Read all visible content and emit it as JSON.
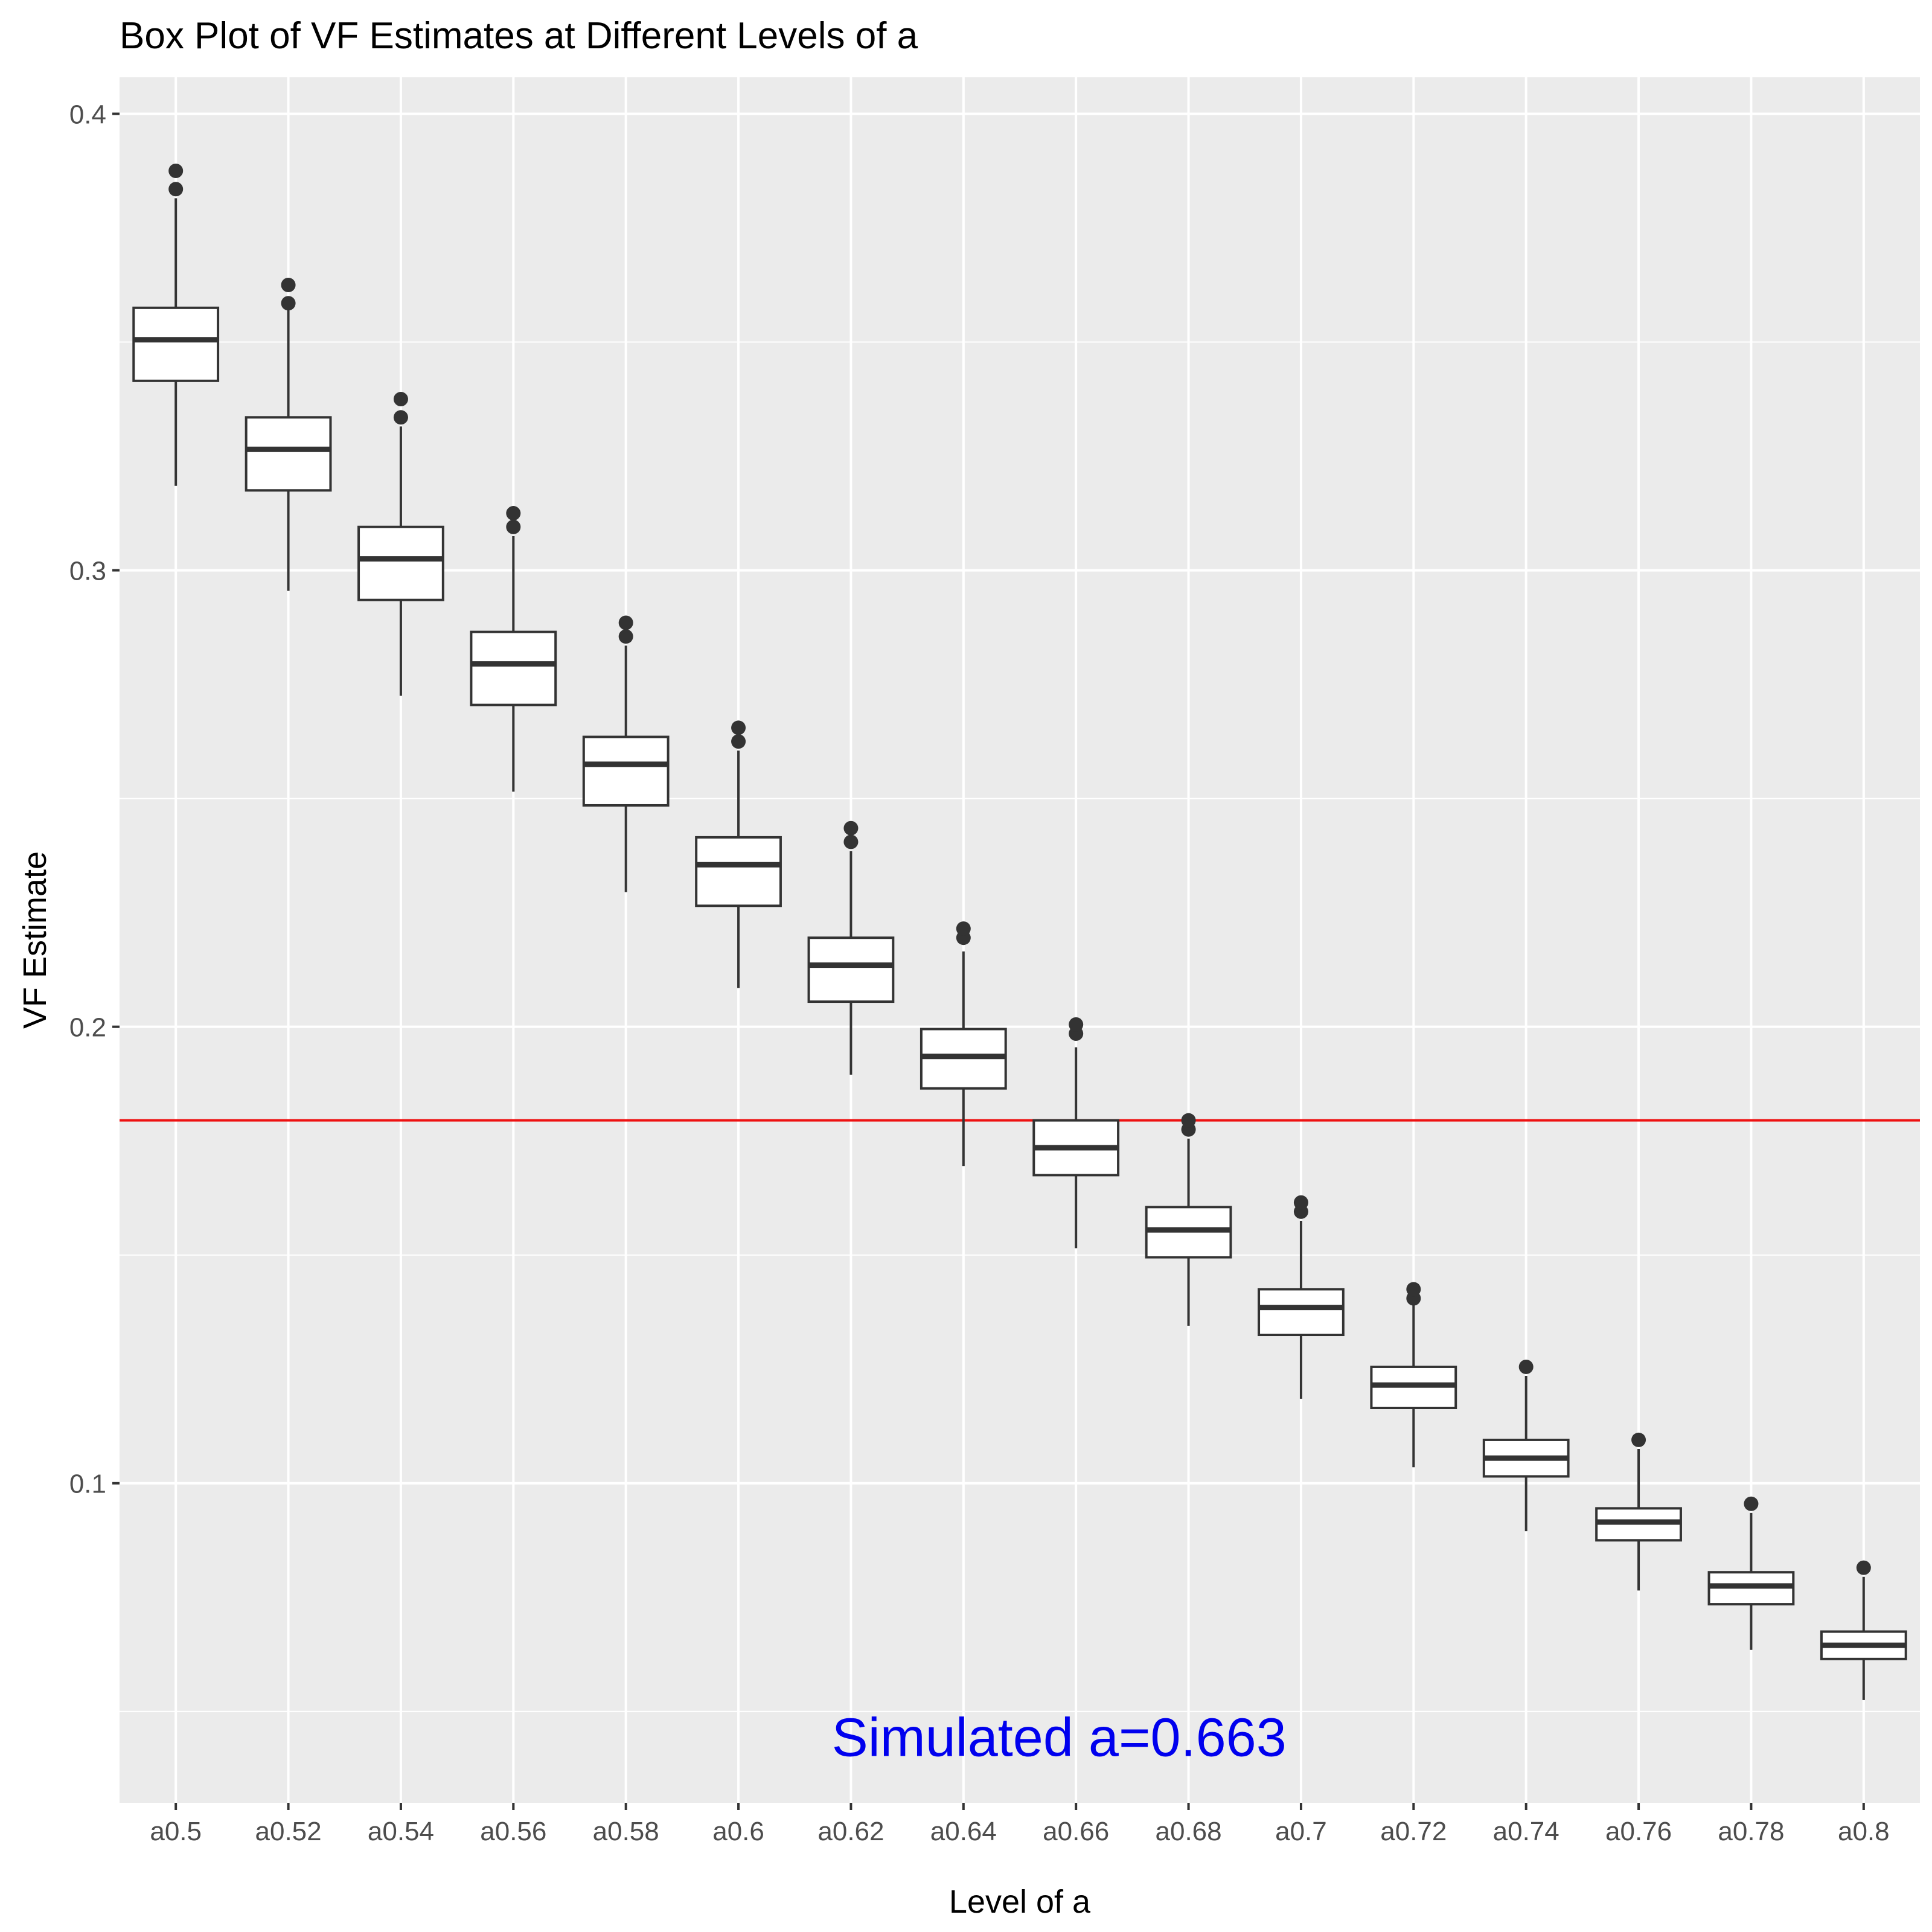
{
  "chart_data": {
    "type": "box",
    "title": "Box Plot of VF Estimates at Different Levels of a",
    "xlabel": "Level of a",
    "ylabel": "VF Estimate",
    "ylim": [
      0.03,
      0.408
    ],
    "yticks": [
      0.1,
      0.2,
      0.3,
      0.4
    ],
    "ytick_labels": [
      "0.1",
      "0.2",
      "0.3",
      "0.4"
    ],
    "grid": true,
    "categories": [
      "a0.5",
      "a0.52",
      "a0.54",
      "a0.56",
      "a0.58",
      "a0.6",
      "a0.62",
      "a0.64",
      "a0.66",
      "a0.68",
      "a0.7",
      "a0.72",
      "a0.74",
      "a0.76",
      "a0.78",
      "a0.8"
    ],
    "boxes": [
      {
        "q1": 0.3415,
        "median": 0.3505,
        "q3": 0.3575,
        "whisker_low": 0.3185,
        "whisker_high": 0.3815,
        "outliers": [
          0.3835,
          0.3875
        ]
      },
      {
        "q1": 0.3175,
        "median": 0.3265,
        "q3": 0.3335,
        "whisker_low": 0.2955,
        "whisker_high": 0.3575,
        "outliers": [
          0.3585,
          0.3625
        ]
      },
      {
        "q1": 0.2935,
        "median": 0.3025,
        "q3": 0.3095,
        "whisker_low": 0.2725,
        "whisker_high": 0.3315,
        "outliers": [
          0.3335,
          0.3375
        ]
      },
      {
        "q1": 0.2705,
        "median": 0.2795,
        "q3": 0.2865,
        "whisker_low": 0.2515,
        "whisker_high": 0.3075,
        "outliers": [
          0.3095,
          0.3125
        ]
      },
      {
        "q1": 0.2485,
        "median": 0.2575,
        "q3": 0.2635,
        "whisker_low": 0.2295,
        "whisker_high": 0.2835,
        "outliers": [
          0.2855,
          0.2885
        ]
      },
      {
        "q1": 0.2265,
        "median": 0.2355,
        "q3": 0.2415,
        "whisker_low": 0.2085,
        "whisker_high": 0.2605,
        "outliers": [
          0.2625,
          0.2655
        ]
      },
      {
        "q1": 0.2055,
        "median": 0.2135,
        "q3": 0.2195,
        "whisker_low": 0.1895,
        "whisker_high": 0.2385,
        "outliers": [
          0.2405,
          0.2435
        ]
      },
      {
        "q1": 0.1865,
        "median": 0.1935,
        "q3": 0.1995,
        "whisker_low": 0.1695,
        "whisker_high": 0.2165,
        "outliers": [
          0.2195,
          0.2215
        ]
      },
      {
        "q1": 0.1675,
        "median": 0.1735,
        "q3": 0.1795,
        "whisker_low": 0.1515,
        "whisker_high": 0.1955,
        "outliers": [
          0.1985,
          0.2005
        ]
      },
      {
        "q1": 0.1495,
        "median": 0.1555,
        "q3": 0.1605,
        "whisker_low": 0.1345,
        "whisker_high": 0.1755,
        "outliers": [
          0.1775,
          0.1795
        ]
      },
      {
        "q1": 0.1325,
        "median": 0.1385,
        "q3": 0.1425,
        "whisker_low": 0.1185,
        "whisker_high": 0.1575,
        "outliers": [
          0.1595,
          0.1615
        ]
      },
      {
        "q1": 0.1165,
        "median": 0.1215,
        "q3": 0.1255,
        "whisker_low": 0.1035,
        "whisker_high": 0.1395,
        "outliers": [
          0.1405,
          0.1425
        ]
      },
      {
        "q1": 0.1015,
        "median": 0.1055,
        "q3": 0.1095,
        "whisker_low": 0.0895,
        "whisker_high": 0.1235,
        "outliers": [
          0.1255
        ]
      },
      {
        "q1": 0.0875,
        "median": 0.0915,
        "q3": 0.0945,
        "whisker_low": 0.0765,
        "whisker_high": 0.1075,
        "outliers": [
          0.1095
        ]
      },
      {
        "q1": 0.0735,
        "median": 0.0775,
        "q3": 0.0805,
        "whisker_low": 0.0635,
        "whisker_high": 0.0935,
        "outliers": [
          0.0955
        ]
      },
      {
        "q1": 0.0615,
        "median": 0.0645,
        "q3": 0.0675,
        "whisker_low": 0.0525,
        "whisker_high": 0.0795,
        "outliers": [
          0.0815
        ]
      }
    ],
    "reference_line": {
      "y": 0.1795,
      "color": "#ee1111"
    },
    "annotation": {
      "text": "Simulated a=0.663",
      "color": "#0000ee",
      "x_category_position": 8.85,
      "y": 0.0445
    },
    "colors": {
      "panel_background": "#ebebeb",
      "grid": "#ffffff",
      "box_line": "#333333",
      "box_fill": "#ffffff"
    }
  }
}
